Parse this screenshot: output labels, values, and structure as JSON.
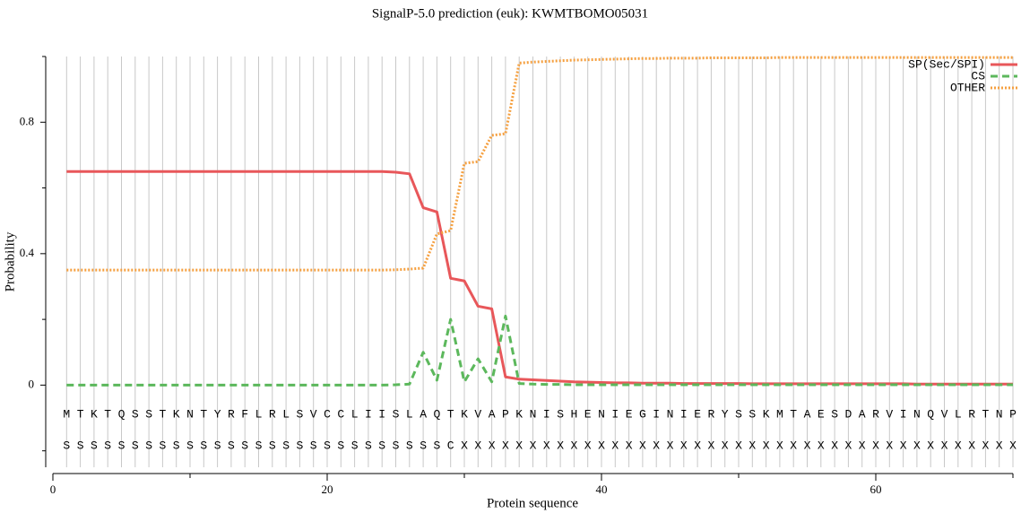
{
  "chart_data": {
    "type": "line",
    "title": "SignalP-5.0 prediction (euk):  KWMTBOMO05031",
    "x_label": "Protein sequence",
    "y_label": "Probability",
    "x": [
      1,
      2,
      3,
      4,
      5,
      6,
      7,
      8,
      9,
      10,
      11,
      12,
      13,
      14,
      15,
      16,
      17,
      18,
      19,
      20,
      21,
      22,
      23,
      24,
      25,
      26,
      27,
      28,
      29,
      30,
      31,
      32,
      33,
      34,
      35,
      36,
      37,
      38,
      39,
      40,
      41,
      42,
      43,
      44,
      45,
      46,
      47,
      48,
      49,
      50,
      51,
      52,
      53,
      54,
      55,
      56,
      57,
      58,
      59,
      60,
      61,
      62,
      63,
      64,
      65,
      66,
      67,
      68,
      69,
      70
    ],
    "sequence": [
      "M",
      "T",
      "K",
      "T",
      "Q",
      "S",
      "S",
      "T",
      "K",
      "N",
      "T",
      "Y",
      "R",
      "F",
      "L",
      "R",
      "L",
      "S",
      "V",
      "C",
      "C",
      "L",
      "I",
      "I",
      "S",
      "L",
      "A",
      "Q",
      "T",
      "K",
      "V",
      "A",
      "P",
      "K",
      "N",
      "I",
      "S",
      "H",
      "E",
      "N",
      "I",
      "E",
      "G",
      "I",
      "N",
      "I",
      "E",
      "R",
      "Y",
      "S",
      "S",
      "K",
      "M",
      "T",
      "A",
      "E",
      "S",
      "D",
      "A",
      "R",
      "V",
      "I",
      "N",
      "Q",
      "V",
      "L",
      "R",
      "T",
      "N",
      "P"
    ],
    "labels": [
      "S",
      "S",
      "S",
      "S",
      "S",
      "S",
      "S",
      "S",
      "S",
      "S",
      "S",
      "S",
      "S",
      "S",
      "S",
      "S",
      "S",
      "S",
      "S",
      "S",
      "S",
      "S",
      "S",
      "S",
      "S",
      "S",
      "S",
      "S",
      "C",
      "X",
      "X",
      "X",
      "X",
      "X",
      "X",
      "X",
      "X",
      "X",
      "X",
      "X",
      "X",
      "X",
      "X",
      "X",
      "X",
      "X",
      "X",
      "X",
      "X",
      "X",
      "X",
      "X",
      "X",
      "X",
      "X",
      "X",
      "X",
      "X",
      "X",
      "X",
      "X",
      "X",
      "X",
      "X",
      "X",
      "X",
      "X",
      "X",
      "X",
      "X"
    ],
    "series": [
      {
        "name": "SP(Sec/SPI)",
        "color": "#e8575a",
        "dash": "solid",
        "values": [
          0.65,
          0.65,
          0.65,
          0.65,
          0.65,
          0.65,
          0.65,
          0.65,
          0.65,
          0.65,
          0.65,
          0.65,
          0.65,
          0.65,
          0.65,
          0.65,
          0.65,
          0.65,
          0.65,
          0.65,
          0.65,
          0.65,
          0.65,
          0.65,
          0.648,
          0.643,
          0.54,
          0.527,
          0.325,
          0.317,
          0.24,
          0.232,
          0.025,
          0.018,
          0.016,
          0.014,
          0.012,
          0.01,
          0.009,
          0.008,
          0.007,
          0.007,
          0.006,
          0.006,
          0.006,
          0.005,
          0.005,
          0.005,
          0.005,
          0.005,
          0.004,
          0.004,
          0.004,
          0.004,
          0.004,
          0.004,
          0.004,
          0.004,
          0.004,
          0.004,
          0.004,
          0.004,
          0.003,
          0.003,
          0.003,
          0.003,
          0.003,
          0.003,
          0.003,
          0.003
        ]
      },
      {
        "name": "CS",
        "color": "#5cb85c",
        "dash": "dashed",
        "values": [
          0,
          0,
          0,
          0,
          0,
          0,
          0,
          0,
          0,
          0,
          0,
          0,
          0,
          0,
          0,
          0,
          0,
          0,
          0,
          0,
          0,
          0,
          0,
          0,
          0.001,
          0.003,
          0.1,
          0.015,
          0.2,
          0.01,
          0.08,
          0.01,
          0.21,
          0.005,
          0.003,
          0.002,
          0.002,
          0.001,
          0.001,
          0.001,
          0.001,
          0.001,
          0.001,
          0.001,
          0.001,
          0.001,
          0.001,
          0.001,
          0.001,
          0.001,
          0.001,
          0.001,
          0.001,
          0.001,
          0.001,
          0.001,
          0.001,
          0.001,
          0.001,
          0.001,
          0.001,
          0.001,
          0.001,
          0.001,
          0.001,
          0.001,
          0.001,
          0.001,
          0.001,
          0.001
        ]
      },
      {
        "name": "OTHER",
        "color": "#f5a040",
        "dash": "dotted",
        "values": [
          0.35,
          0.35,
          0.35,
          0.35,
          0.35,
          0.35,
          0.35,
          0.35,
          0.35,
          0.35,
          0.35,
          0.35,
          0.35,
          0.35,
          0.35,
          0.35,
          0.35,
          0.35,
          0.35,
          0.35,
          0.35,
          0.35,
          0.35,
          0.35,
          0.351,
          0.353,
          0.356,
          0.46,
          0.47,
          0.675,
          0.68,
          0.76,
          0.765,
          0.98,
          0.983,
          0.985,
          0.987,
          0.989,
          0.99,
          0.991,
          0.992,
          0.993,
          0.994,
          0.994,
          0.995,
          0.995,
          0.995,
          0.996,
          0.996,
          0.996,
          0.996,
          0.996,
          0.997,
          0.997,
          0.997,
          0.997,
          0.997,
          0.997,
          0.997,
          0.997,
          0.997,
          0.997,
          0.997,
          0.997,
          0.997,
          0.997,
          0.997,
          0.997,
          0.997,
          0.997
        ]
      }
    ],
    "xlim": [
      0,
      70
    ],
    "xticks": [
      0,
      20,
      40,
      60
    ],
    "xminorticks": [
      10,
      30,
      50,
      70
    ],
    "ylim": [
      -0.25,
      1.0
    ],
    "yticks": [
      0,
      0.4,
      0.8
    ],
    "yminorticks": [
      -0.2,
      0.2,
      0.6,
      1.0
    ],
    "grid": true,
    "legend": "upper right"
  }
}
